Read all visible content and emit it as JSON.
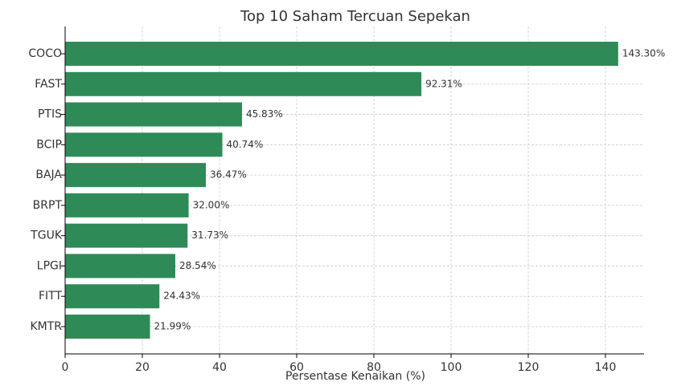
{
  "chart_data": {
    "type": "bar",
    "orientation": "horizontal",
    "title": "Top 10 Saham Tercuan Sepekan",
    "x_label": "Persentase Kenaikan (%)",
    "categories": [
      "COCO",
      "FAST",
      "PTIS",
      "BCIP",
      "BAJA",
      "BRPT",
      "TGUK",
      "LPGI",
      "FITT",
      "KMTR"
    ],
    "values": [
      143.3,
      92.31,
      45.83,
      40.74,
      36.47,
      32.0,
      31.73,
      28.54,
      24.43,
      21.99
    ],
    "value_labels": [
      "143.30%",
      "92.31%",
      "45.83%",
      "40.74%",
      "36.47%",
      "32.00%",
      "31.73%",
      "28.54%",
      "24.43%",
      "21.99%"
    ],
    "color": "#2e8b57",
    "xlim": [
      0,
      150
    ],
    "xticks": [
      0,
      20,
      40,
      60,
      80,
      100,
      120,
      140
    ],
    "grid": true
  }
}
